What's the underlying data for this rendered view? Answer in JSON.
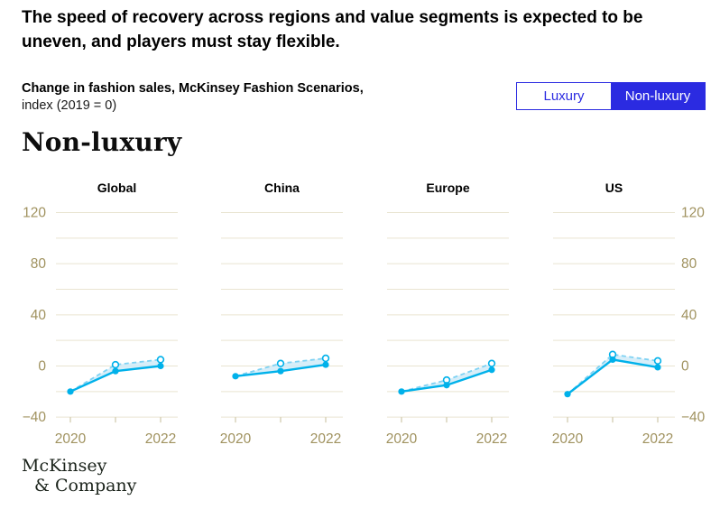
{
  "header": {
    "title": "The speed of recovery across regions and value segments is expected to be uneven, and players must stay flexible."
  },
  "subtitle": {
    "line1": "Change in fashion sales, McKinsey Fashion Scenarios,",
    "line2": "index (2019 = 0)"
  },
  "toggle": {
    "options": [
      {
        "label": "Luxury",
        "active": false
      },
      {
        "label": "Non-luxury",
        "active": true
      }
    ]
  },
  "section_heading": "Non-luxury",
  "chart_data": {
    "type": "line",
    "title": "Change in fashion sales, McKinsey Fashion Scenarios, index (2019 = 0)",
    "segment_shown": "Non-luxury",
    "x": [
      2020,
      2021,
      2022
    ],
    "x_tick_labels": [
      "2020",
      "",
      "2022"
    ],
    "ylim": [
      -40,
      120
    ],
    "grid_step": 20,
    "grid_on": true,
    "legend": "none",
    "y_ticks": [
      {
        "value": 120,
        "label": "120"
      },
      {
        "value": 80,
        "label": "80"
      },
      {
        "value": 40,
        "label": "40"
      },
      {
        "value": 0,
        "label": "0"
      },
      {
        "value": -40,
        "label": "−40"
      }
    ],
    "band_color": "#cdeaf8",
    "panels": [
      {
        "title": "Global",
        "series": [
          {
            "name": "solid-scenario",
            "style": "solid",
            "color": "#00b1ea",
            "values": [
              -20,
              -4,
              0
            ]
          },
          {
            "name": "dashed-scenario",
            "style": "dashed",
            "color": "#7fd2f3",
            "values": [
              -20,
              1,
              5
            ]
          }
        ]
      },
      {
        "title": "China",
        "series": [
          {
            "name": "solid-scenario",
            "style": "solid",
            "color": "#00b1ea",
            "values": [
              -8,
              -4,
              1
            ]
          },
          {
            "name": "dashed-scenario",
            "style": "dashed",
            "color": "#7fd2f3",
            "values": [
              -8,
              2,
              6
            ]
          }
        ]
      },
      {
        "title": "Europe",
        "series": [
          {
            "name": "solid-scenario",
            "style": "solid",
            "color": "#00b1ea",
            "values": [
              -20,
              -15,
              -3
            ]
          },
          {
            "name": "dashed-scenario",
            "style": "dashed",
            "color": "#7fd2f3",
            "values": [
              -20,
              -11,
              2
            ]
          }
        ]
      },
      {
        "title": "US",
        "series": [
          {
            "name": "solid-scenario",
            "style": "solid",
            "color": "#00b1ea",
            "values": [
              -22,
              5,
              -1
            ]
          },
          {
            "name": "dashed-scenario",
            "style": "dashed",
            "color": "#7fd2f3",
            "values": [
              -22,
              9,
              4
            ]
          }
        ]
      }
    ]
  },
  "colors": {
    "accent_blue": "#2b2be1",
    "line_cyan": "#00b1ea",
    "dashed_cyan": "#7fd2f3",
    "band_fill": "#cdeaf8",
    "gridline": "#e9e4d1",
    "axis_text": "#a0925f"
  },
  "logo": {
    "line1": "McKinsey",
    "line2": "& Company"
  }
}
